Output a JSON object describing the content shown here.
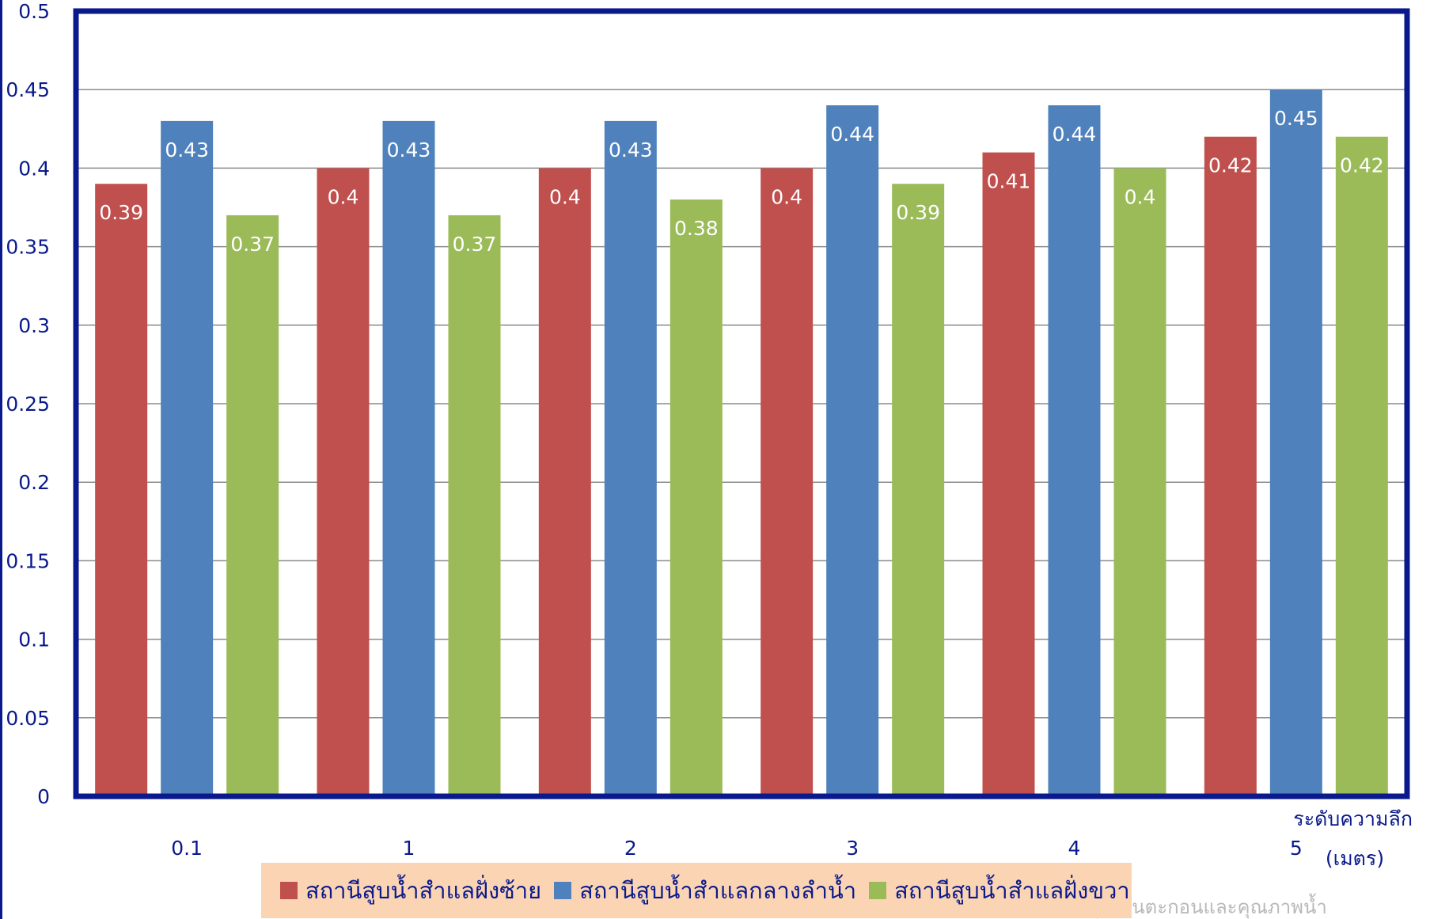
{
  "chart_data": {
    "type": "bar",
    "categories": [
      "0.1",
      "1",
      "2",
      "3",
      "4",
      "5"
    ],
    "series": [
      {
        "name": "สถานีสูบน้ำสำแลฝั่งซ้าย",
        "color": "#c0504d",
        "values": [
          0.39,
          0.4,
          0.4,
          0.4,
          0.41,
          0.42
        ]
      },
      {
        "name": "สถานีสูบน้ำสำแลกลางลำน้ำ",
        "color": "#4f81bd",
        "values": [
          0.43,
          0.43,
          0.43,
          0.44,
          0.44,
          0.45
        ]
      },
      {
        "name": "สถานีสูบน้ำสำแลฝั่งขวา",
        "color": "#9bbb59",
        "values": [
          0.37,
          0.37,
          0.38,
          0.39,
          0.4,
          0.42
        ]
      }
    ],
    "y_ticks": [
      "0",
      "0.05",
      "0.1",
      "0.15",
      "0.2",
      "0.25",
      "0.3",
      "0.35",
      "0.4",
      "0.45",
      "0.5"
    ],
    "ylim": [
      0,
      0.5
    ],
    "xlabel_line1": "ระดับความลึก",
    "xlabel_line2": "(เมตร)",
    "ylabel": "",
    "title": "",
    "grid": true,
    "legend_position": "bottom",
    "frame_color": "#0a1a8c",
    "watermark": "กลุ่มงานตะกอนและคุณภาพน้ำ"
  }
}
